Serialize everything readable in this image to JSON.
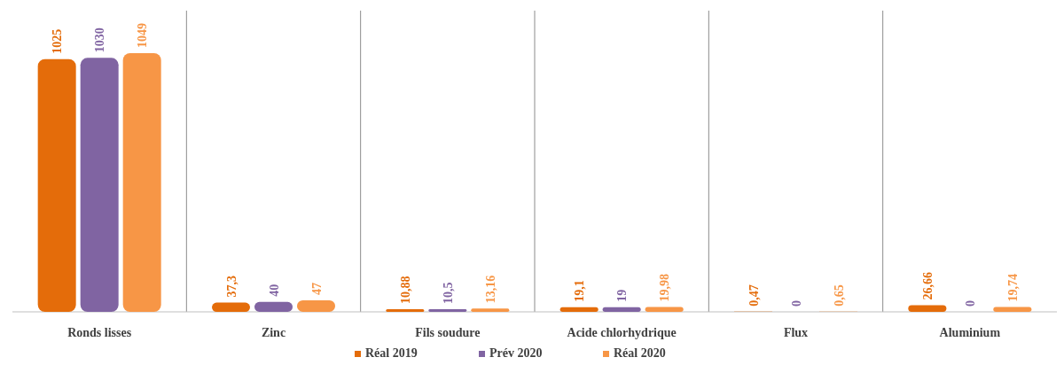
{
  "chart_data": {
    "type": "bar",
    "categories": [
      "Ronds lisses",
      "Zinc",
      "Fils soudure",
      "Acide chlorhydrique",
      "Flux",
      "Aluminium"
    ],
    "series": [
      {
        "name": "Réal 2019",
        "color": "#e46c0a",
        "values": [
          1025,
          37.3,
          10.88,
          19.1,
          0.47,
          26.66
        ],
        "value_labels": [
          "1025",
          "37,3",
          "10,88",
          "19,1",
          "0,47",
          "26,66"
        ]
      },
      {
        "name": "Prév 2020",
        "color": "#8064a2",
        "values": [
          1030,
          40,
          10.5,
          19,
          0,
          0
        ],
        "value_labels": [
          "1030",
          "40",
          "10,5",
          "19",
          "0",
          "0"
        ]
      },
      {
        "name": "Réal 2020",
        "color": "#f79646",
        "values": [
          1049,
          47,
          13.16,
          19.98,
          0.65,
          19.74
        ],
        "value_labels": [
          "1049",
          "47",
          "13,16",
          "19,98",
          "0,65",
          "19,74"
        ]
      }
    ],
    "legend": "bottom"
  }
}
